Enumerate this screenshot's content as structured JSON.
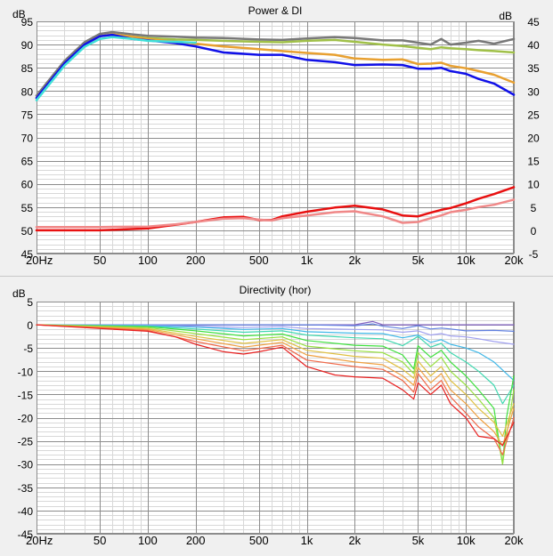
{
  "chart_data": [
    {
      "type": "line",
      "title": "Power & DI",
      "x_scale": "log",
      "xlim": [
        20,
        20000
      ],
      "ylim_left": [
        45,
        95
      ],
      "ylim_right": [
        -5,
        45
      ],
      "ylabel_left": "dB",
      "ylabel_right": "dB",
      "grid": true,
      "x_ticks": [
        20,
        50,
        100,
        200,
        500,
        1000,
        2000,
        5000,
        10000,
        20000
      ],
      "x_tick_labels": [
        "20Hz",
        "50",
        "100",
        "200",
        "500",
        "1k",
        "2k",
        "5k",
        "10k",
        "20k"
      ],
      "y_left_ticks": [
        45,
        50,
        55,
        60,
        65,
        70,
        75,
        80,
        85,
        90,
        95
      ],
      "y_right_ticks": [
        -5,
        0,
        5,
        10,
        15,
        20,
        25,
        30,
        35,
        40,
        45
      ],
      "series": [
        {
          "color": "#787878",
          "axis": "left",
          "x": [
            20,
            30,
            40,
            50,
            60,
            80,
            100,
            150,
            200,
            300,
            500,
            700,
            1000,
            1500,
            2000,
            3000,
            4000,
            5000,
            6000,
            7000,
            8000,
            10000,
            12000,
            15000,
            20000
          ],
          "y": [
            79,
            86.5,
            90.5,
            92.3,
            92.7,
            92.2,
            91.9,
            91.7,
            91.5,
            91.4,
            91.1,
            91.0,
            91.3,
            91.6,
            91.4,
            90.9,
            90.9,
            90.4,
            90.0,
            91.2,
            90.0,
            90.4,
            90.8,
            90.2,
            91.2
          ]
        },
        {
          "color": "#a0c048",
          "axis": "left",
          "x": [
            20,
            30,
            40,
            50,
            60,
            80,
            100,
            150,
            200,
            300,
            500,
            700,
            1000,
            1500,
            2000,
            3000,
            4000,
            5000,
            6000,
            7000,
            8000,
            10000,
            12000,
            15000,
            20000
          ],
          "y": [
            78.5,
            86,
            90,
            91.8,
            92.2,
            91.7,
            91.4,
            91.1,
            91.0,
            90.8,
            90.6,
            90.5,
            90.8,
            91.0,
            90.6,
            90.0,
            89.7,
            89.3,
            89.0,
            89.4,
            89.2,
            89.0,
            88.8,
            88.6,
            88.3
          ]
        },
        {
          "color": "#e8a030",
          "axis": "left",
          "x": [
            20,
            30,
            40,
            50,
            60,
            80,
            100,
            150,
            200,
            300,
            500,
            700,
            1000,
            1500,
            2000,
            3000,
            4000,
            5000,
            6000,
            7000,
            8000,
            10000,
            12000,
            15000,
            20000
          ],
          "y": [
            78.5,
            86,
            90,
            91.8,
            92.2,
            91.7,
            91.2,
            90.6,
            90.2,
            89.6,
            89.0,
            88.6,
            88.2,
            87.8,
            87.0,
            86.7,
            86.8,
            85.8,
            85.9,
            86.1,
            85.4,
            84.9,
            84.3,
            83.5,
            81.8
          ]
        },
        {
          "color": "#1010e8",
          "axis": "left",
          "x": [
            20,
            30,
            40,
            50,
            60,
            80,
            100,
            150,
            200,
            300,
            500,
            700,
            1000,
            1500,
            2000,
            3000,
            4000,
            5000,
            6000,
            7000,
            8000,
            10000,
            12000,
            15000,
            20000
          ],
          "y": [
            78.5,
            86,
            90,
            91.8,
            92.1,
            91.2,
            90.9,
            90.3,
            89.6,
            88.3,
            87.8,
            87.8,
            86.7,
            86.2,
            85.6,
            85.7,
            85.6,
            84.8,
            84.8,
            85.0,
            84.3,
            83.7,
            82.6,
            81.6,
            79.2
          ]
        },
        {
          "color": "#40e0d8",
          "axis": "left",
          "x": [
            20,
            30,
            40,
            50,
            60,
            80,
            100,
            150,
            200
          ],
          "y": [
            78,
            85.5,
            89.5,
            91.2,
            91.6,
            91.2,
            90.8,
            90.6,
            90.4
          ]
        },
        {
          "color": "#e81010",
          "axis": "right",
          "x": [
            20,
            50,
            100,
            150,
            200,
            300,
            400,
            500,
            600,
            700,
            1000,
            1500,
            2000,
            3000,
            4000,
            5000,
            6000,
            7000,
            8000,
            10000,
            12000,
            15000,
            20000
          ],
          "y": [
            0.0,
            0.0,
            0.4,
            1.2,
            1.8,
            2.8,
            2.9,
            2.2,
            2.2,
            3.0,
            4.0,
            4.9,
            5.3,
            4.5,
            3.2,
            3.0,
            3.8,
            4.4,
            4.8,
            5.8,
            6.8,
            7.8,
            9.3
          ]
        },
        {
          "color": "#f08888",
          "axis": "right",
          "x": [
            20,
            50,
            100,
            150,
            200,
            300,
            400,
            500,
            600,
            700,
            1000,
            1500,
            2000,
            3000,
            4000,
            5000,
            6000,
            7000,
            8000,
            10000,
            12000,
            15000,
            20000
          ],
          "y": [
            0.7,
            0.7,
            0.8,
            1.3,
            1.8,
            2.5,
            2.6,
            2.3,
            2.1,
            2.6,
            3.2,
            3.9,
            4.1,
            3.0,
            1.6,
            1.8,
            2.6,
            3.2,
            3.9,
            4.4,
            5.0,
            5.5,
            6.6
          ]
        }
      ]
    },
    {
      "type": "line",
      "title": "Directivity (hor)",
      "x_scale": "log",
      "xlim": [
        20,
        20000
      ],
      "ylim": [
        -45,
        5
      ],
      "ylabel": "dB",
      "grid": true,
      "x_ticks": [
        20,
        50,
        100,
        200,
        500,
        1000,
        2000,
        5000,
        10000,
        20000
      ],
      "x_tick_labels": [
        "20Hz",
        "50",
        "100",
        "200",
        "500",
        "1k",
        "2k",
        "5k",
        "10k",
        "20k"
      ],
      "y_ticks": [
        -45,
        -40,
        -35,
        -30,
        -25,
        -20,
        -15,
        -10,
        -5,
        0,
        5
      ],
      "series": [
        {
          "color": "#8060c0",
          "x": [
            20,
            100,
            500,
            1000,
            2000,
            2600,
            3000,
            4000,
            5000,
            6000,
            8000,
            10000,
            15000,
            20000
          ],
          "y": [
            0,
            0,
            0,
            0,
            0,
            0.7,
            0,
            0,
            0,
            0,
            0,
            0,
            0,
            0
          ]
        },
        {
          "color": "#6080e0",
          "x": [
            20,
            100,
            300,
            1000,
            2000,
            2600,
            3000,
            4000,
            5000,
            6000,
            7000,
            8000,
            10000,
            15000,
            20000
          ],
          "y": [
            0,
            0,
            0,
            0,
            -0.2,
            0.2,
            -0.3,
            -0.8,
            -0.2,
            -0.9,
            -0.7,
            -0.9,
            -1.3,
            -1.2,
            -1.4
          ]
        },
        {
          "color": "#a0a0f0",
          "x": [
            20,
            100,
            200,
            400,
            700,
            1000,
            2000,
            3000,
            4000,
            5000,
            6000,
            7000,
            8000,
            10000,
            12000,
            15000,
            20000
          ],
          "y": [
            0,
            -0.1,
            -0.3,
            -0.6,
            -0.4,
            -0.8,
            -1.0,
            -1.1,
            -1.6,
            -1.3,
            -2.2,
            -1.9,
            -2.4,
            -2.6,
            -3.0,
            -3.6,
            -4.2
          ]
        },
        {
          "color": "#40b8e8",
          "x": [
            20,
            100,
            200,
            400,
            700,
            1000,
            2000,
            3000,
            4000,
            5000,
            6000,
            7000,
            8000,
            10000,
            12000,
            15000,
            20000
          ],
          "y": [
            0,
            -0.2,
            -0.5,
            -1.0,
            -0.8,
            -1.5,
            -1.8,
            -1.9,
            -2.8,
            -2.2,
            -3.8,
            -3.2,
            -4.2,
            -5.0,
            -6.0,
            -8.0,
            -12.0
          ]
        },
        {
          "color": "#40d8b0",
          "x": [
            20,
            100,
            200,
            400,
            700,
            1000,
            2000,
            3000,
            4000,
            5000,
            6000,
            7000,
            8000,
            10000,
            12000,
            15000,
            17000,
            20000
          ],
          "y": [
            0,
            -0.3,
            -0.9,
            -1.6,
            -1.3,
            -2.2,
            -2.8,
            -3.0,
            -4.5,
            -2.5,
            -4.8,
            -4.0,
            -6.0,
            -8.0,
            -10.0,
            -13.0,
            -17.0,
            -13.0
          ]
        },
        {
          "color": "#40e040",
          "x": [
            20,
            100,
            200,
            400,
            700,
            1000,
            2000,
            3000,
            4000,
            4700,
            5000,
            6000,
            7000,
            8000,
            10000,
            12000,
            15000,
            17000,
            18000,
            20000
          ],
          "y": [
            0,
            -0.4,
            -1.3,
            -2.4,
            -2.0,
            -3.4,
            -4.4,
            -4.6,
            -6.5,
            -9.5,
            -4.5,
            -7.0,
            -5.5,
            -8.0,
            -11.0,
            -14.0,
            -18.0,
            -30.0,
            -20.0,
            -11.0
          ]
        },
        {
          "color": "#98e040",
          "x": [
            20,
            100,
            200,
            400,
            700,
            1000,
            2000,
            3000,
            4000,
            4700,
            5000,
            6000,
            7000,
            8000,
            10000,
            12000,
            15000,
            17000,
            18000,
            20000
          ],
          "y": [
            0,
            -0.6,
            -1.9,
            -3.2,
            -2.6,
            -4.6,
            -5.6,
            -6.0,
            -8.0,
            -10.5,
            -6.0,
            -9.0,
            -7.0,
            -10.0,
            -13.0,
            -16.0,
            -20.0,
            -30.0,
            -24.0,
            -14.0
          ]
        },
        {
          "color": "#e0c040",
          "x": [
            20,
            100,
            200,
            400,
            700,
            1000,
            2000,
            3000,
            4000,
            4700,
            5000,
            6000,
            7000,
            8000,
            10000,
            12000,
            15000,
            17000,
            20000
          ],
          "y": [
            0,
            -0.8,
            -2.5,
            -4.0,
            -3.2,
            -5.5,
            -6.8,
            -7.2,
            -9.6,
            -11.5,
            -7.8,
            -11.0,
            -9.0,
            -12.0,
            -15.0,
            -18.0,
            -21.0,
            -24.0,
            -17.0
          ]
        },
        {
          "color": "#f0a040",
          "x": [
            20,
            100,
            200,
            400,
            700,
            1000,
            2000,
            3000,
            4000,
            4700,
            5000,
            6000,
            7000,
            8000,
            10000,
            12000,
            15000,
            17000,
            20000
          ],
          "y": [
            0,
            -1.0,
            -3.0,
            -4.8,
            -3.8,
            -6.5,
            -8.0,
            -8.6,
            -11.0,
            -13.0,
            -9.2,
            -12.5,
            -10.5,
            -14.0,
            -17.0,
            -20.0,
            -23.0,
            -26.0,
            -18.0
          ]
        },
        {
          "color": "#f06848",
          "x": [
            20,
            100,
            200,
            400,
            700,
            1000,
            2000,
            3000,
            4000,
            4700,
            5000,
            6000,
            7000,
            8000,
            10000,
            12000,
            15000,
            17000,
            20000
          ],
          "y": [
            0,
            -1.2,
            -3.6,
            -5.6,
            -4.4,
            -7.6,
            -9.0,
            -9.6,
            -12.0,
            -14.5,
            -10.5,
            -14.0,
            -12.0,
            -15.5,
            -19.0,
            -22.0,
            -24.5,
            -28.0,
            -20.0
          ]
        },
        {
          "color": "#e82020",
          "x": [
            20,
            100,
            150,
            200,
            300,
            400,
            500,
            700,
            1000,
            1500,
            2000,
            3000,
            4000,
            4700,
            5000,
            6000,
            7000,
            8000,
            10000,
            12000,
            15000,
            17000,
            20000
          ],
          "y": [
            0,
            -1.4,
            -2.6,
            -4.2,
            -5.8,
            -6.3,
            -5.8,
            -4.8,
            -9.0,
            -10.8,
            -11.2,
            -11.5,
            -14.0,
            -16.0,
            -12.5,
            -15.0,
            -13.0,
            -17.0,
            -20.0,
            -24.0,
            -24.5,
            -26.0,
            -21.0
          ]
        }
      ]
    }
  ]
}
